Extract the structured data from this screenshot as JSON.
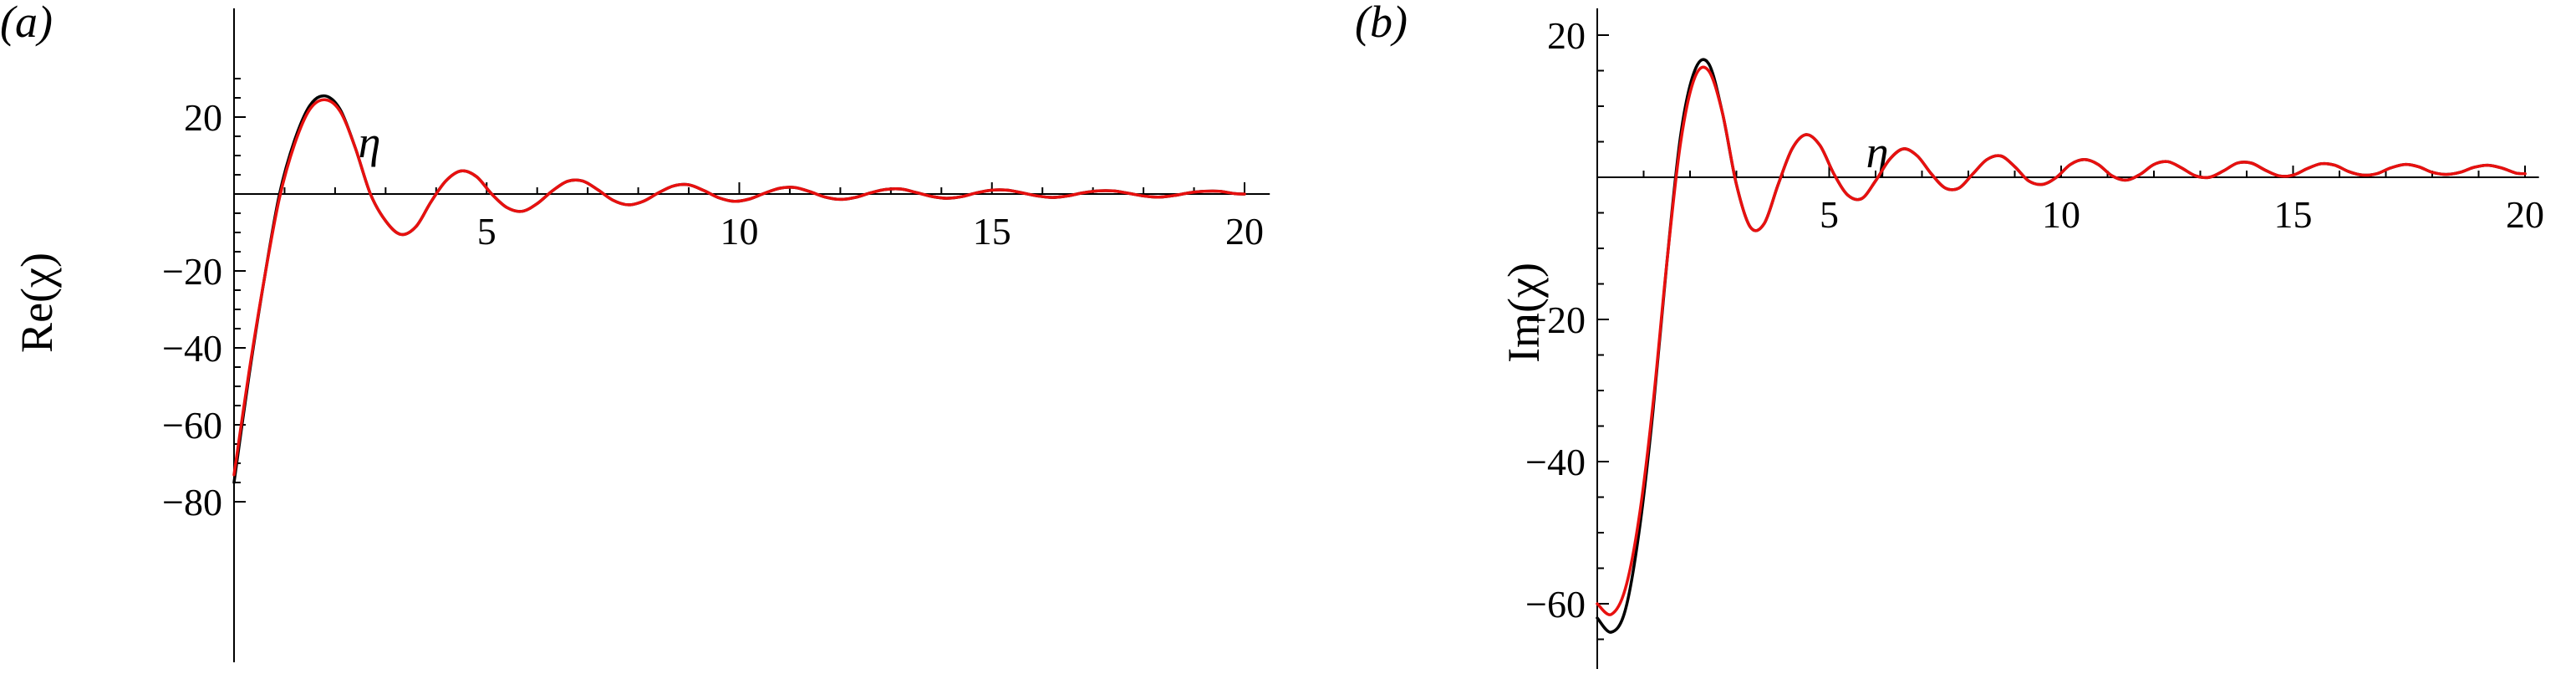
{
  "chart_data": [
    {
      "type": "line",
      "panel_label": "(a)",
      "xlabel": "η",
      "ylabel": "Re(χ)",
      "xlim": [
        0,
        20.5
      ],
      "ylim": [
        -80,
        30
      ],
      "xticks": [
        5,
        10,
        15,
        20
      ],
      "xtick_labels": [
        "5",
        "10",
        "15",
        "20"
      ],
      "yticks": [
        20,
        -20,
        -40,
        -60,
        -80
      ],
      "ytick_labels": [
        "20",
        "−20",
        "−40",
        "−60",
        "−80"
      ],
      "legend": "none",
      "grid": false,
      "series": [
        {
          "color": "#000000",
          "x": [
            0,
            0.3,
            0.6,
            0.9,
            1.2,
            1.5,
            1.8,
            2.1,
            2.4,
            2.7,
            3.0,
            3.3,
            3.6,
            3.9,
            4.2,
            4.5,
            4.8,
            5.1,
            5.4,
            5.7,
            6.0,
            6.3,
            6.6,
            6.9,
            7.2,
            7.5,
            7.8,
            8.1,
            8.4,
            8.7,
            9.0,
            9.3,
            9.6,
            9.9,
            10.2,
            10.5,
            10.8,
            11.1,
            11.4,
            11.7,
            12.0,
            12.3,
            12.6,
            12.9,
            13.2,
            13.5,
            13.8,
            14.1,
            14.4,
            14.7,
            15.0,
            15.3,
            15.6,
            15.9,
            16.2,
            16.5,
            16.8,
            17.1,
            17.4,
            17.7,
            18.0,
            18.3,
            18.6,
            18.9,
            19.2,
            19.5,
            19.8,
            20.0
          ],
          "y": [
            -75,
            -47,
            -22,
            0,
            14,
            23,
            25.5,
            22,
            12,
            0,
            -7,
            -10.5,
            -8.5,
            -2,
            3.5,
            6,
            4.5,
            0,
            -3.5,
            -4.5,
            -2.5,
            0.8,
            3.3,
            3.4,
            1.1,
            -1.6,
            -2.8,
            -1.9,
            0.3,
            2.1,
            2.4,
            0.9,
            -1,
            -1.9,
            -1.3,
            0.2,
            1.5,
            1.7,
            0.6,
            -0.8,
            -1.4,
            -0.9,
            0.3,
            1.2,
            1.3,
            0.4,
            -0.6,
            -1.1,
            -0.7,
            0.3,
            1.0,
            1.0,
            0.3,
            -0.5,
            -0.9,
            -0.5,
            0.3,
            0.8,
            0.8,
            0.2,
            -0.5,
            -0.8,
            -0.4,
            0.3,
            0.7,
            0.7,
            0.1,
            0
          ]
        },
        {
          "color": "#e8100f",
          "x": [
            0,
            0.3,
            0.6,
            0.9,
            1.2,
            1.5,
            1.8,
            2.1,
            2.4,
            2.7,
            3.0,
            3.3,
            3.6,
            3.9,
            4.2,
            4.5,
            4.8,
            5.1,
            5.4,
            5.7,
            6.0,
            6.3,
            6.6,
            6.9,
            7.2,
            7.5,
            7.8,
            8.1,
            8.4,
            8.7,
            9.0,
            9.3,
            9.6,
            9.9,
            10.2,
            10.5,
            10.8,
            11.1,
            11.4,
            11.7,
            12.0,
            12.3,
            12.6,
            12.9,
            13.2,
            13.5,
            13.8,
            14.1,
            14.4,
            14.7,
            15.0,
            15.3,
            15.6,
            15.9,
            16.2,
            16.5,
            16.8,
            17.1,
            17.4,
            17.7,
            18.0,
            18.3,
            18.6,
            18.9,
            19.2,
            19.5,
            19.8,
            20.0
          ],
          "y": [
            -73,
            -46,
            -22,
            -1,
            13,
            22,
            24.5,
            21.5,
            12,
            0,
            -7,
            -10.5,
            -8.5,
            -2,
            3.5,
            6,
            4.5,
            0,
            -3.5,
            -4.5,
            -2.5,
            0.8,
            3.3,
            3.4,
            1.1,
            -1.6,
            -2.8,
            -1.9,
            0.3,
            2.1,
            2.4,
            0.9,
            -1,
            -1.9,
            -1.3,
            0.2,
            1.5,
            1.7,
            0.6,
            -0.8,
            -1.4,
            -0.9,
            0.3,
            1.2,
            1.3,
            0.4,
            -0.6,
            -1.1,
            -0.7,
            0.3,
            1.0,
            1.0,
            0.3,
            -0.5,
            -0.9,
            -0.5,
            0.3,
            0.8,
            0.8,
            0.2,
            -0.5,
            -0.8,
            -0.4,
            0.3,
            0.7,
            0.7,
            0.1,
            0
          ]
        }
      ]
    },
    {
      "type": "line",
      "panel_label": "(b)",
      "xlabel": "η",
      "ylabel": "Im(χ)",
      "xlim": [
        0,
        20.3
      ],
      "ylim": [
        -68,
        21
      ],
      "xticks": [
        5,
        10,
        15,
        20
      ],
      "xtick_labels": [
        "5",
        "10",
        "15",
        "20"
      ],
      "yticks": [
        20,
        -20,
        -40,
        -60
      ],
      "ytick_labels": [
        "20",
        "−20",
        "−40",
        "−60"
      ],
      "legend": "none",
      "grid": false,
      "series": [
        {
          "color": "#000000",
          "x": [
            0,
            0.3,
            0.6,
            0.9,
            1.2,
            1.5,
            1.8,
            2.1,
            2.4,
            2.7,
            3.0,
            3.3,
            3.6,
            3.9,
            4.2,
            4.5,
            4.8,
            5.1,
            5.4,
            5.7,
            6.0,
            6.3,
            6.6,
            6.9,
            7.2,
            7.5,
            7.8,
            8.1,
            8.4,
            8.7,
            9.0,
            9.3,
            9.6,
            9.9,
            10.2,
            10.5,
            10.8,
            11.1,
            11.4,
            11.7,
            12.0,
            12.3,
            12.6,
            12.9,
            13.2,
            13.5,
            13.8,
            14.1,
            14.4,
            14.7,
            15.0,
            15.3,
            15.6,
            15.9,
            16.2,
            16.5,
            16.8,
            17.1,
            17.4,
            17.7,
            18.0,
            18.3,
            18.6,
            18.9,
            19.2,
            19.5,
            19.8,
            20.0
          ],
          "y": [
            -62,
            -64,
            -61,
            -50,
            -33,
            -12,
            6,
            15,
            16,
            9,
            -1,
            -7,
            -6.5,
            -1,
            4,
            6,
            4.5,
            0.5,
            -2.5,
            -3,
            -0.5,
            2.5,
            4,
            3,
            0.5,
            -1.5,
            -1.5,
            0.5,
            2.5,
            3,
            1.5,
            -0.5,
            -1,
            0,
            1.8,
            2.5,
            1.8,
            0.2,
            -0.4,
            0.4,
            1.8,
            2.2,
            1.3,
            0.2,
            0,
            0.9,
            2,
            2,
            1,
            0.2,
            0.3,
            1.2,
            1.9,
            1.7,
            0.8,
            0.3,
            0.5,
            1.3,
            1.8,
            1.5,
            0.7,
            0.4,
            0.7,
            1.4,
            1.7,
            1.3,
            0.6,
            0.5
          ]
        },
        {
          "color": "#e8100f",
          "x": [
            0,
            0.3,
            0.6,
            0.9,
            1.2,
            1.5,
            1.8,
            2.1,
            2.4,
            2.7,
            3.0,
            3.3,
            3.6,
            3.9,
            4.2,
            4.5,
            4.8,
            5.1,
            5.4,
            5.7,
            6.0,
            6.3,
            6.6,
            6.9,
            7.2,
            7.5,
            7.8,
            8.1,
            8.4,
            8.7,
            9.0,
            9.3,
            9.6,
            9.9,
            10.2,
            10.5,
            10.8,
            11.1,
            11.4,
            11.7,
            12.0,
            12.3,
            12.6,
            12.9,
            13.2,
            13.5,
            13.8,
            14.1,
            14.4,
            14.7,
            15.0,
            15.3,
            15.6,
            15.9,
            16.2,
            16.5,
            16.8,
            17.1,
            17.4,
            17.7,
            18.0,
            18.3,
            18.6,
            18.9,
            19.2,
            19.5,
            19.8,
            20.0
          ],
          "y": [
            -60,
            -61.5,
            -58,
            -48,
            -32,
            -12,
            5,
            14,
            15,
            9,
            -1,
            -7,
            -6.5,
            -1,
            4,
            6,
            4.5,
            0.5,
            -2.5,
            -3,
            -0.5,
            2.5,
            4,
            3,
            0.5,
            -1.5,
            -1.5,
            0.5,
            2.5,
            3,
            1.5,
            -0.5,
            -1,
            0,
            1.8,
            2.5,
            1.8,
            0.2,
            -0.4,
            0.4,
            1.8,
            2.2,
            1.3,
            0.2,
            0,
            0.9,
            2,
            2,
            1,
            0.2,
            0.3,
            1.2,
            1.9,
            1.7,
            0.8,
            0.3,
            0.5,
            1.3,
            1.8,
            1.5,
            0.7,
            0.4,
            0.7,
            1.4,
            1.7,
            1.3,
            0.6,
            0.5
          ]
        }
      ]
    }
  ]
}
